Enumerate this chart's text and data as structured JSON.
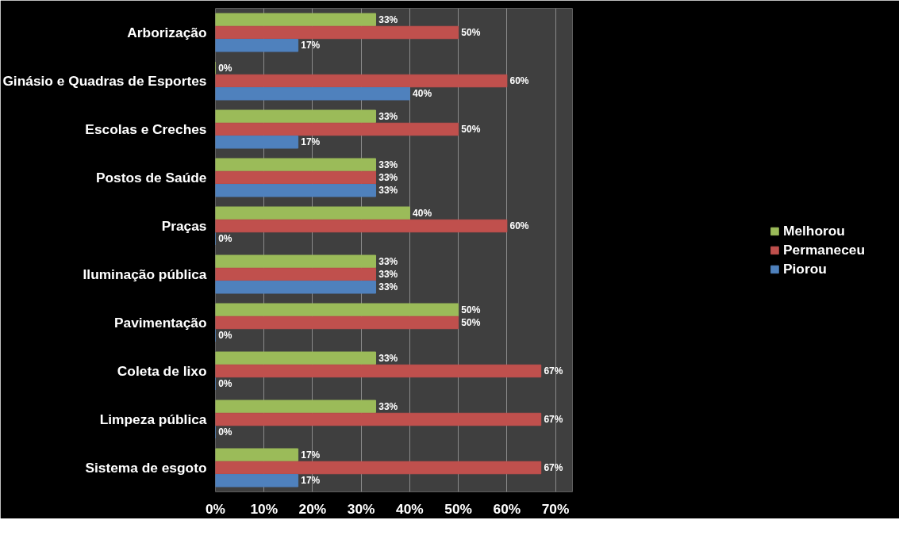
{
  "chart_data": {
    "type": "bar",
    "orientation": "horizontal",
    "categories": [
      "Arborização",
      "Ginásio e Quadras de Esportes",
      "Escolas e Creches",
      "Postos de Saúde",
      "Praças",
      "Iluminação pública",
      "Pavimentação",
      "Coleta de lixo",
      "Limpeza pública",
      "Sistema de esgoto"
    ],
    "series": [
      {
        "name": "Melhorou",
        "color": "#9bbb59",
        "values": [
          33,
          0,
          33,
          33,
          40,
          33,
          50,
          33,
          33,
          17
        ],
        "value_labels": [
          "33%",
          "0%",
          "33%",
          "33%",
          "40%",
          "33%",
          "50%",
          "33%",
          "33%",
          "17%"
        ]
      },
      {
        "name": "Permaneceu",
        "color": "#c0504d",
        "values": [
          50,
          60,
          50,
          33,
          60,
          33,
          50,
          67,
          67,
          67
        ],
        "value_labels": [
          "50%",
          "60%",
          "50%",
          "33%",
          "60%",
          "33%",
          "50%",
          "67%",
          "67%",
          "67%"
        ]
      },
      {
        "name": "Piorou",
        "color": "#4f81bd",
        "values": [
          17,
          40,
          17,
          33,
          0,
          33,
          0,
          0,
          0,
          17
        ],
        "value_labels": [
          "17%",
          "40%",
          "17%",
          "33%",
          "0%",
          "33%",
          "0%",
          "0%",
          "0%",
          "17%"
        ]
      }
    ],
    "xlim": [
      0,
      73.5
    ],
    "xticks": [
      {
        "value": 0,
        "label": "0%"
      },
      {
        "value": 10,
        "label": "10%"
      },
      {
        "value": 20,
        "label": "20%"
      },
      {
        "value": 30,
        "label": "30%"
      },
      {
        "value": 40,
        "label": "40%"
      },
      {
        "value": 50,
        "label": "50%"
      },
      {
        "value": 60,
        "label": "60%"
      },
      {
        "value": 70,
        "label": "70%"
      }
    ],
    "grid": "x",
    "legend": "right"
  }
}
